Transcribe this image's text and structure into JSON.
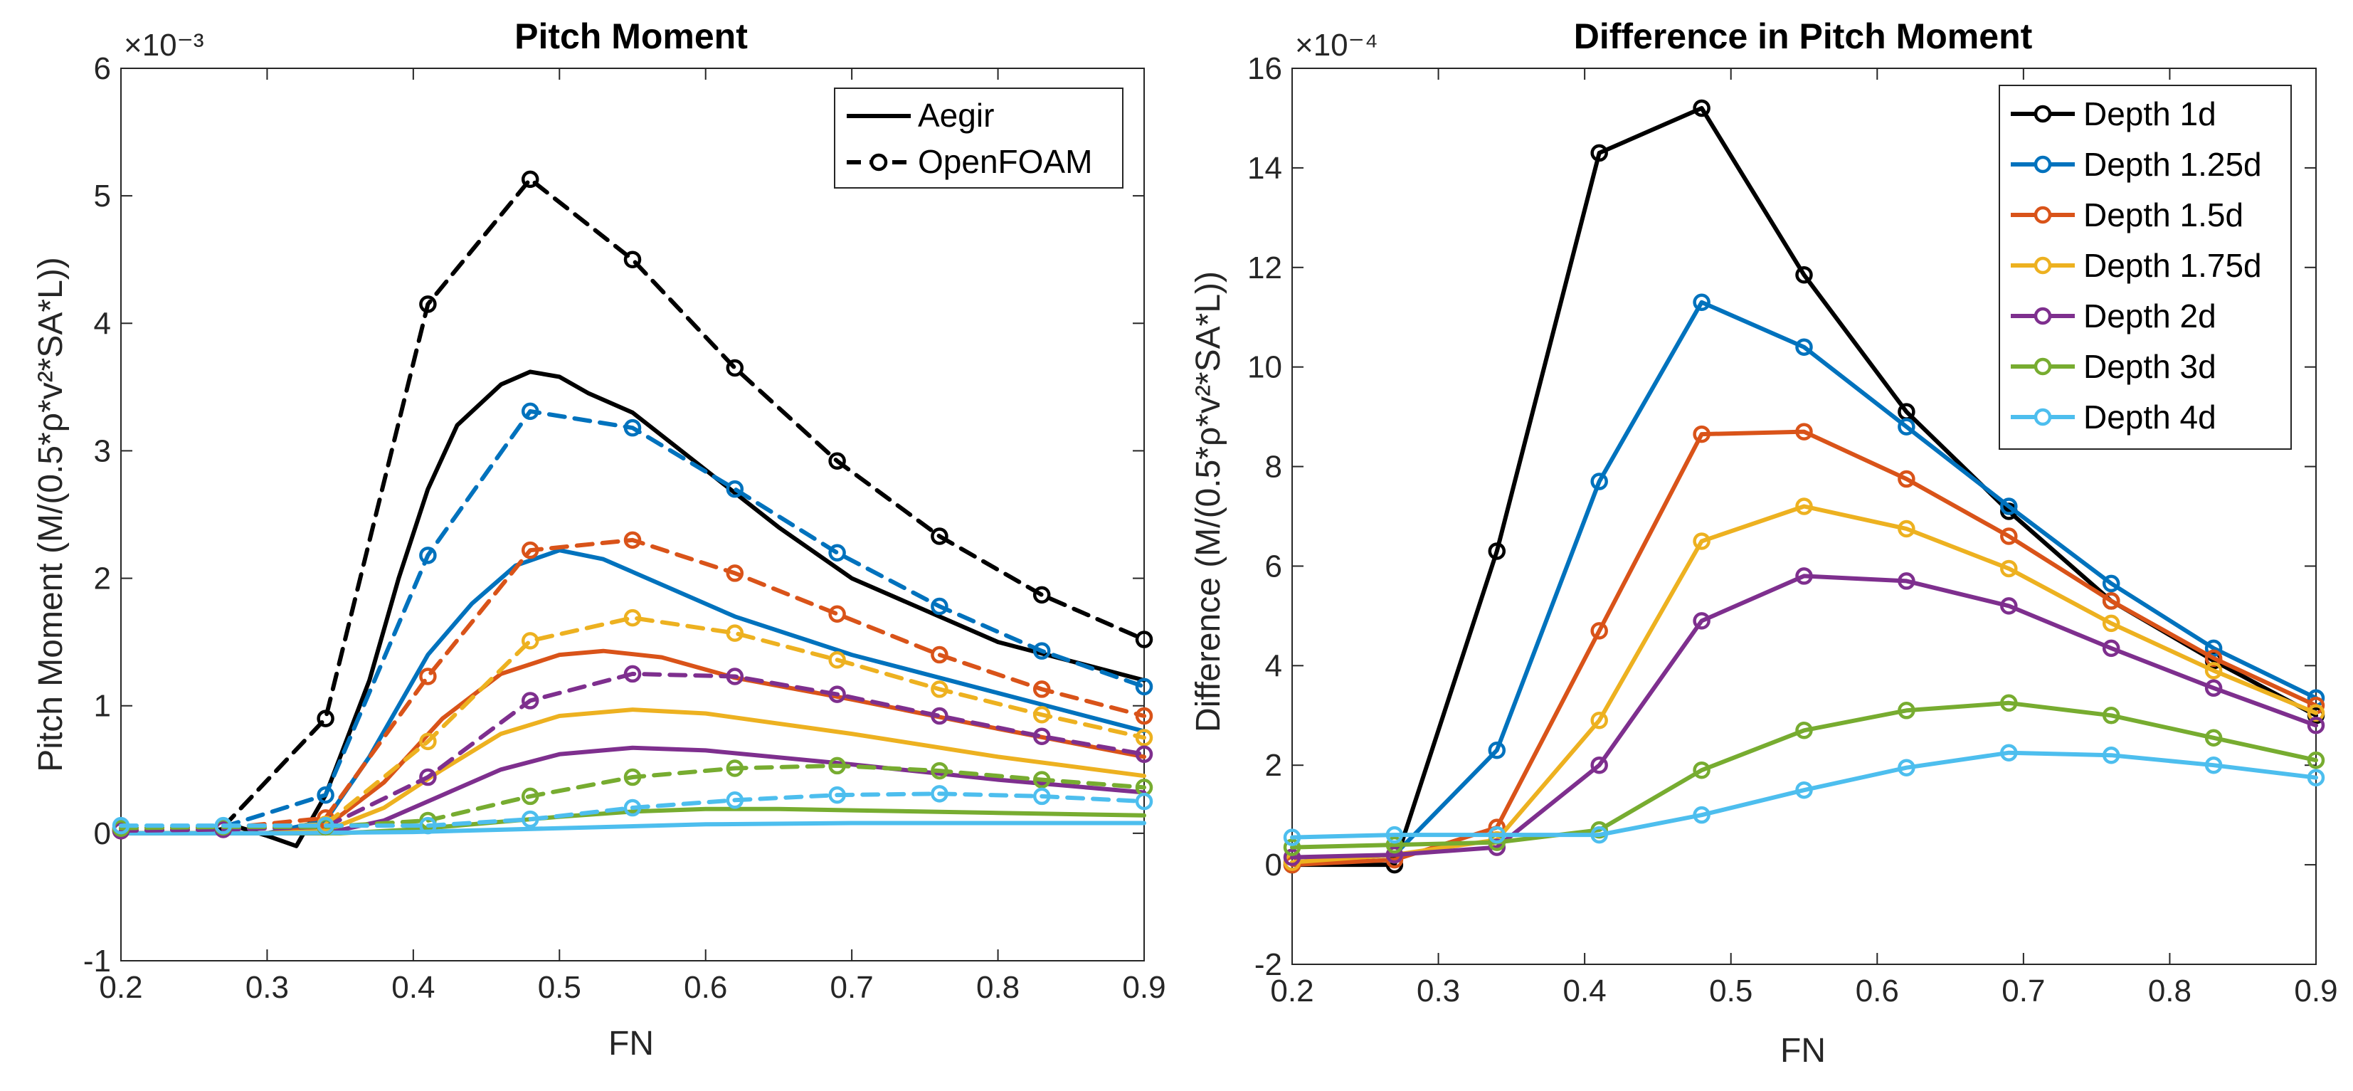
{
  "chart_data": [
    {
      "type": "line",
      "title": "Pitch Moment",
      "xlabel": "FN",
      "ylabel": "Pitch Moment (M/(0.5*ρ*v²*SA*L))",
      "exponent": "×10⁻³",
      "xlim": [
        0.2,
        0.9
      ],
      "ylim": [
        -1,
        6
      ],
      "xticks": [
        "0.2",
        "0.3",
        "0.4",
        "0.5",
        "0.6",
        "0.7",
        "0.8",
        "0.9"
      ],
      "yticks": [
        "-1",
        "0",
        "1",
        "2",
        "3",
        "4",
        "5",
        "6"
      ],
      "legend": [
        {
          "label": "Aegir",
          "style": "solid"
        },
        {
          "label": "OpenFOAM",
          "style": "dashed-marker"
        }
      ],
      "legend_position": "top-right",
      "aegir_series": [
        {
          "name": "Depth 1d",
          "color": "#000000",
          "x": [
            0.2,
            0.25,
            0.28,
            0.3,
            0.32,
            0.34,
            0.37,
            0.39,
            0.41,
            0.43,
            0.46,
            0.48,
            0.5,
            0.52,
            0.55,
            0.6,
            0.65,
            0.7,
            0.75,
            0.8,
            0.85,
            0.9
          ],
          "y": [
            0.0,
            0.0,
            0.05,
            -0.02,
            -0.1,
            0.3,
            1.2,
            2.0,
            2.7,
            3.2,
            3.52,
            3.62,
            3.58,
            3.45,
            3.3,
            2.85,
            2.4,
            2.0,
            1.75,
            1.5,
            1.35,
            1.2
          ]
        },
        {
          "name": "Depth 1.25d",
          "color": "#0072BD",
          "x": [
            0.2,
            0.3,
            0.34,
            0.37,
            0.41,
            0.44,
            0.47,
            0.5,
            0.53,
            0.57,
            0.62,
            0.7,
            0.8,
            0.9
          ],
          "y": [
            0.0,
            0.0,
            0.1,
            0.6,
            1.4,
            1.8,
            2.1,
            2.22,
            2.15,
            1.95,
            1.7,
            1.4,
            1.1,
            0.8
          ]
        },
        {
          "name": "Depth 1.5d",
          "color": "#D95319",
          "x": [
            0.2,
            0.3,
            0.34,
            0.38,
            0.42,
            0.46,
            0.5,
            0.53,
            0.57,
            0.62,
            0.7,
            0.8,
            0.9
          ],
          "y": [
            0.0,
            0.0,
            0.05,
            0.4,
            0.9,
            1.25,
            1.4,
            1.43,
            1.38,
            1.22,
            1.05,
            0.82,
            0.6
          ]
        },
        {
          "name": "Depth 1.75d",
          "color": "#EDB120",
          "x": [
            0.2,
            0.3,
            0.34,
            0.38,
            0.42,
            0.46,
            0.5,
            0.55,
            0.6,
            0.7,
            0.8,
            0.9
          ],
          "y": [
            0.0,
            0.0,
            0.02,
            0.2,
            0.5,
            0.78,
            0.92,
            0.97,
            0.94,
            0.78,
            0.6,
            0.45
          ]
        },
        {
          "name": "Depth 2d",
          "color": "#7E2F8E",
          "x": [
            0.2,
            0.3,
            0.34,
            0.38,
            0.42,
            0.46,
            0.5,
            0.55,
            0.6,
            0.7,
            0.8,
            0.9
          ],
          "y": [
            0.0,
            0.0,
            0.0,
            0.1,
            0.3,
            0.5,
            0.62,
            0.67,
            0.65,
            0.54,
            0.42,
            0.32
          ]
        },
        {
          "name": "Depth 3d",
          "color": "#77AC30",
          "x": [
            0.2,
            0.3,
            0.35,
            0.4,
            0.45,
            0.5,
            0.55,
            0.6,
            0.65,
            0.7,
            0.8,
            0.9
          ],
          "y": [
            0.0,
            0.0,
            0.0,
            0.03,
            0.08,
            0.13,
            0.17,
            0.19,
            0.19,
            0.18,
            0.16,
            0.14
          ]
        },
        {
          "name": "Depth 4d",
          "color": "#4DBEEE",
          "x": [
            0.2,
            0.3,
            0.4,
            0.5,
            0.6,
            0.7,
            0.8,
            0.9
          ],
          "y": [
            0.0,
            0.0,
            0.01,
            0.04,
            0.07,
            0.08,
            0.08,
            0.08
          ]
        }
      ],
      "openfoam_series": [
        {
          "name": "Depth 1d",
          "color": "#000000",
          "x": [
            0.2,
            0.27,
            0.34,
            0.41,
            0.48,
            0.55,
            0.62,
            0.69,
            0.76,
            0.83,
            0.9
          ],
          "y": [
            0.02,
            0.05,
            0.9,
            4.15,
            5.13,
            4.5,
            3.65,
            2.92,
            2.33,
            1.87,
            1.52
          ]
        },
        {
          "name": "Depth 1.25d",
          "color": "#0072BD",
          "x": [
            0.2,
            0.27,
            0.34,
            0.41,
            0.48,
            0.55,
            0.62,
            0.69,
            0.76,
            0.83,
            0.9
          ],
          "y": [
            0.04,
            0.05,
            0.3,
            2.18,
            3.31,
            3.18,
            2.7,
            2.2,
            1.78,
            1.43,
            1.15
          ]
        },
        {
          "name": "Depth 1.5d",
          "color": "#D95319",
          "x": [
            0.2,
            0.27,
            0.34,
            0.41,
            0.48,
            0.55,
            0.62,
            0.69,
            0.76,
            0.83,
            0.9
          ],
          "y": [
            0.02,
            0.04,
            0.12,
            1.23,
            2.22,
            2.3,
            2.04,
            1.72,
            1.4,
            1.13,
            0.92
          ]
        },
        {
          "name": "Depth 1.75d",
          "color": "#EDB120",
          "x": [
            0.2,
            0.27,
            0.34,
            0.41,
            0.48,
            0.55,
            0.62,
            0.69,
            0.76,
            0.83,
            0.9
          ],
          "y": [
            0.03,
            0.04,
            0.07,
            0.72,
            1.51,
            1.69,
            1.57,
            1.36,
            1.13,
            0.93,
            0.75
          ]
        },
        {
          "name": "Depth 2d",
          "color": "#7E2F8E",
          "x": [
            0.2,
            0.27,
            0.34,
            0.41,
            0.48,
            0.55,
            0.62,
            0.69,
            0.76,
            0.83,
            0.9
          ],
          "y": [
            0.02,
            0.03,
            0.05,
            0.44,
            1.04,
            1.25,
            1.23,
            1.09,
            0.92,
            0.76,
            0.62
          ]
        },
        {
          "name": "Depth 3d",
          "color": "#77AC30",
          "x": [
            0.2,
            0.27,
            0.34,
            0.41,
            0.48,
            0.55,
            0.62,
            0.69,
            0.76,
            0.83,
            0.9
          ],
          "y": [
            0.04,
            0.05,
            0.05,
            0.1,
            0.29,
            0.44,
            0.51,
            0.53,
            0.49,
            0.42,
            0.36
          ]
        },
        {
          "name": "Depth 4d",
          "color": "#4DBEEE",
          "x": [
            0.2,
            0.27,
            0.34,
            0.41,
            0.48,
            0.55,
            0.62,
            0.69,
            0.76,
            0.83,
            0.9
          ],
          "y": [
            0.06,
            0.06,
            0.06,
            0.06,
            0.11,
            0.2,
            0.26,
            0.3,
            0.31,
            0.29,
            0.25
          ]
        }
      ]
    },
    {
      "type": "line",
      "title": "Difference in Pitch Moment",
      "xlabel": "FN",
      "ylabel": "Difference (M/(0.5*ρ*v²*SA*L))",
      "exponent": "×10⁻⁴",
      "xlim": [
        0.2,
        0.9
      ],
      "ylim": [
        -2,
        16
      ],
      "xticks": [
        "0.2",
        "0.3",
        "0.4",
        "0.5",
        "0.6",
        "0.7",
        "0.8",
        "0.9"
      ],
      "yticks": [
        "-2",
        "0",
        "2",
        "4",
        "6",
        "8",
        "10",
        "12",
        "14",
        "16"
      ],
      "legend_position": "top-right",
      "series": [
        {
          "name": "Depth 1d",
          "color": "#000000",
          "x": [
            0.2,
            0.27,
            0.34,
            0.41,
            0.48,
            0.55,
            0.62,
            0.69,
            0.76,
            0.83,
            0.9
          ],
          "y": [
            0.0,
            0.0,
            6.3,
            14.3,
            15.2,
            11.85,
            9.1,
            7.1,
            5.3,
            4.1,
            3.0
          ]
        },
        {
          "name": "Depth 1.25d",
          "color": "#0072BD",
          "x": [
            0.2,
            0.27,
            0.34,
            0.41,
            0.48,
            0.55,
            0.62,
            0.69,
            0.76,
            0.83,
            0.9
          ],
          "y": [
            0.05,
            0.2,
            2.3,
            7.7,
            11.3,
            10.4,
            8.8,
            7.2,
            5.65,
            4.35,
            3.35
          ]
        },
        {
          "name": "Depth 1.5d",
          "color": "#D95319",
          "x": [
            0.2,
            0.27,
            0.34,
            0.41,
            0.48,
            0.55,
            0.62,
            0.69,
            0.76,
            0.83,
            0.9
          ],
          "y": [
            0.0,
            0.1,
            0.75,
            4.7,
            8.65,
            8.7,
            7.75,
            6.6,
            5.3,
            4.15,
            3.2
          ]
        },
        {
          "name": "Depth 1.75d",
          "color": "#EDB120",
          "x": [
            0.2,
            0.27,
            0.34,
            0.41,
            0.48,
            0.55,
            0.62,
            0.69,
            0.76,
            0.83,
            0.9
          ],
          "y": [
            0.05,
            0.2,
            0.5,
            2.9,
            6.5,
            7.2,
            6.75,
            5.95,
            4.85,
            3.9,
            3.05
          ]
        },
        {
          "name": "Depth 2d",
          "color": "#7E2F8E",
          "x": [
            0.2,
            0.27,
            0.34,
            0.41,
            0.48,
            0.55,
            0.62,
            0.69,
            0.76,
            0.83,
            0.9
          ],
          "y": [
            0.15,
            0.2,
            0.35,
            2.0,
            4.9,
            5.8,
            5.7,
            5.2,
            4.35,
            3.55,
            2.8
          ]
        },
        {
          "name": "Depth 3d",
          "color": "#77AC30",
          "x": [
            0.2,
            0.27,
            0.34,
            0.41,
            0.48,
            0.55,
            0.62,
            0.69,
            0.76,
            0.83,
            0.9
          ],
          "y": [
            0.35,
            0.4,
            0.45,
            0.7,
            1.9,
            2.7,
            3.1,
            3.25,
            3.0,
            2.55,
            2.1
          ]
        },
        {
          "name": "Depth 4d",
          "color": "#4DBEEE",
          "x": [
            0.2,
            0.27,
            0.34,
            0.41,
            0.48,
            0.55,
            0.62,
            0.69,
            0.76,
            0.83,
            0.9
          ],
          "y": [
            0.55,
            0.6,
            0.6,
            0.6,
            1.0,
            1.5,
            1.95,
            2.25,
            2.2,
            2.0,
            1.75
          ]
        }
      ]
    }
  ]
}
